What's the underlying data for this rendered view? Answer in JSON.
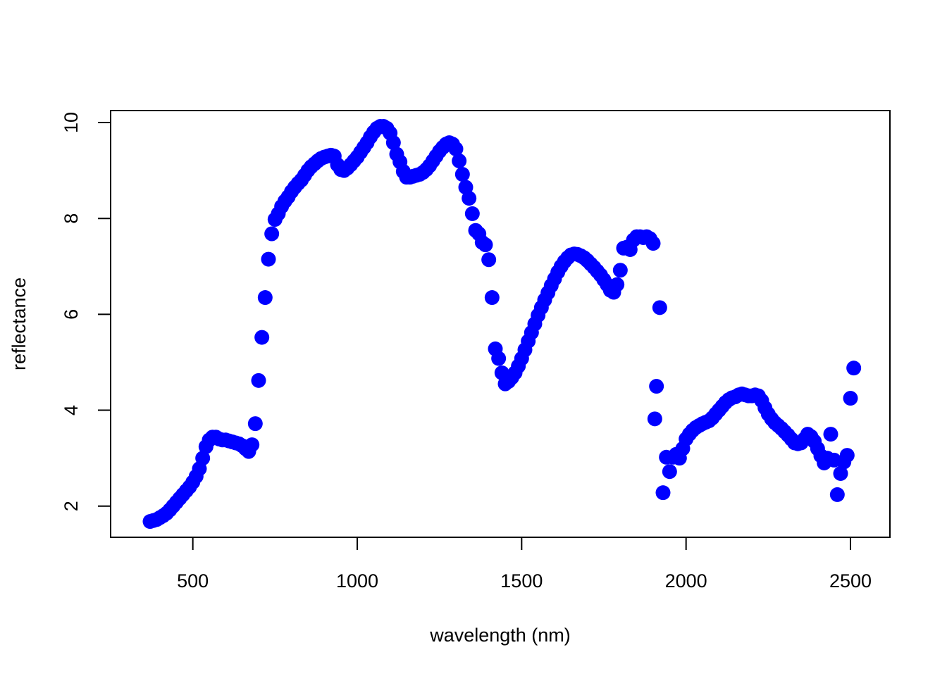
{
  "chart_data": {
    "type": "scatter",
    "title": "",
    "xlabel": "wavelength (nm)",
    "ylabel": "reflectance",
    "xlim": [
      250,
      2620
    ],
    "ylim": [
      1.35,
      10.25
    ],
    "xticks": [
      500,
      1000,
      1500,
      2000,
      2500
    ],
    "yticks": [
      2,
      4,
      6,
      8,
      10
    ],
    "grid": false,
    "legend": "none",
    "point_color": "#0000ff",
    "series": [
      {
        "points": [
          [
            370,
            1.68
          ],
          [
            380,
            1.7
          ],
          [
            390,
            1.72
          ],
          [
            400,
            1.76
          ],
          [
            410,
            1.8
          ],
          [
            420,
            1.85
          ],
          [
            430,
            1.92
          ],
          [
            440,
            2.0
          ],
          [
            450,
            2.08
          ],
          [
            460,
            2.16
          ],
          [
            470,
            2.24
          ],
          [
            480,
            2.32
          ],
          [
            490,
            2.4
          ],
          [
            500,
            2.5
          ],
          [
            510,
            2.62
          ],
          [
            520,
            2.78
          ],
          [
            530,
            3.0
          ],
          [
            540,
            3.24
          ],
          [
            550,
            3.38
          ],
          [
            560,
            3.44
          ],
          [
            570,
            3.44
          ],
          [
            580,
            3.4
          ],
          [
            590,
            3.38
          ],
          [
            600,
            3.38
          ],
          [
            610,
            3.36
          ],
          [
            620,
            3.34
          ],
          [
            630,
            3.32
          ],
          [
            640,
            3.3
          ],
          [
            650,
            3.26
          ],
          [
            660,
            3.2
          ],
          [
            670,
            3.14
          ],
          [
            680,
            3.28
          ],
          [
            690,
            3.72
          ],
          [
            700,
            4.62
          ],
          [
            710,
            5.52
          ],
          [
            720,
            6.35
          ],
          [
            730,
            7.15
          ],
          [
            740,
            7.68
          ],
          [
            750,
            7.98
          ],
          [
            760,
            8.1
          ],
          [
            770,
            8.25
          ],
          [
            780,
            8.36
          ],
          [
            790,
            8.45
          ],
          [
            800,
            8.56
          ],
          [
            810,
            8.65
          ],
          [
            820,
            8.73
          ],
          [
            830,
            8.8
          ],
          [
            840,
            8.9
          ],
          [
            850,
            9.0
          ],
          [
            860,
            9.08
          ],
          [
            870,
            9.14
          ],
          [
            880,
            9.2
          ],
          [
            890,
            9.25
          ],
          [
            900,
            9.28
          ],
          [
            910,
            9.3
          ],
          [
            920,
            9.32
          ],
          [
            930,
            9.3
          ],
          [
            940,
            9.12
          ],
          [
            950,
            9.02
          ],
          [
            960,
            9.0
          ],
          [
            970,
            9.05
          ],
          [
            980,
            9.12
          ],
          [
            990,
            9.2
          ],
          [
            1000,
            9.28
          ],
          [
            1010,
            9.38
          ],
          [
            1020,
            9.48
          ],
          [
            1030,
            9.58
          ],
          [
            1040,
            9.7
          ],
          [
            1050,
            9.8
          ],
          [
            1060,
            9.88
          ],
          [
            1070,
            9.92
          ],
          [
            1080,
            9.92
          ],
          [
            1090,
            9.88
          ],
          [
            1100,
            9.78
          ],
          [
            1110,
            9.58
          ],
          [
            1120,
            9.34
          ],
          [
            1130,
            9.18
          ],
          [
            1140,
            8.98
          ],
          [
            1150,
            8.86
          ],
          [
            1160,
            8.86
          ],
          [
            1170,
            8.88
          ],
          [
            1180,
            8.9
          ],
          [
            1190,
            8.92
          ],
          [
            1200,
            8.96
          ],
          [
            1210,
            9.02
          ],
          [
            1220,
            9.1
          ],
          [
            1230,
            9.2
          ],
          [
            1240,
            9.3
          ],
          [
            1250,
            9.4
          ],
          [
            1260,
            9.48
          ],
          [
            1270,
            9.55
          ],
          [
            1280,
            9.58
          ],
          [
            1290,
            9.55
          ],
          [
            1300,
            9.45
          ],
          [
            1310,
            9.2
          ],
          [
            1320,
            8.92
          ],
          [
            1330,
            8.65
          ],
          [
            1340,
            8.42
          ],
          [
            1350,
            8.1
          ],
          [
            1360,
            7.75
          ],
          [
            1370,
            7.68
          ],
          [
            1380,
            7.5
          ],
          [
            1390,
            7.45
          ],
          [
            1400,
            7.14
          ],
          [
            1410,
            6.35
          ],
          [
            1420,
            5.28
          ],
          [
            1430,
            5.08
          ],
          [
            1440,
            4.78
          ],
          [
            1450,
            4.55
          ],
          [
            1460,
            4.6
          ],
          [
            1470,
            4.68
          ],
          [
            1480,
            4.78
          ],
          [
            1490,
            4.92
          ],
          [
            1500,
            5.08
          ],
          [
            1510,
            5.26
          ],
          [
            1520,
            5.44
          ],
          [
            1530,
            5.62
          ],
          [
            1540,
            5.8
          ],
          [
            1550,
            5.98
          ],
          [
            1560,
            6.14
          ],
          [
            1570,
            6.3
          ],
          [
            1580,
            6.45
          ],
          [
            1590,
            6.6
          ],
          [
            1600,
            6.74
          ],
          [
            1610,
            6.88
          ],
          [
            1620,
            7.0
          ],
          [
            1630,
            7.1
          ],
          [
            1640,
            7.18
          ],
          [
            1650,
            7.24
          ],
          [
            1660,
            7.26
          ],
          [
            1670,
            7.25
          ],
          [
            1680,
            7.22
          ],
          [
            1690,
            7.18
          ],
          [
            1700,
            7.12
          ],
          [
            1710,
            7.05
          ],
          [
            1720,
            6.98
          ],
          [
            1730,
            6.9
          ],
          [
            1740,
            6.82
          ],
          [
            1750,
            6.72
          ],
          [
            1760,
            6.62
          ],
          [
            1770,
            6.5
          ],
          [
            1780,
            6.46
          ],
          [
            1790,
            6.62
          ],
          [
            1800,
            6.92
          ],
          [
            1810,
            7.38
          ],
          [
            1820,
            7.4
          ],
          [
            1830,
            7.35
          ],
          [
            1840,
            7.55
          ],
          [
            1850,
            7.62
          ],
          [
            1860,
            7.62
          ],
          [
            1870,
            7.6
          ],
          [
            1880,
            7.62
          ],
          [
            1890,
            7.58
          ],
          [
            1900,
            7.48
          ],
          [
            1905,
            3.82
          ],
          [
            1910,
            4.5
          ],
          [
            1920,
            6.14
          ],
          [
            1930,
            2.28
          ],
          [
            1940,
            3.02
          ],
          [
            1950,
            2.72
          ],
          [
            1960,
            3.02
          ],
          [
            1970,
            3.08
          ],
          [
            1980,
            3.0
          ],
          [
            1990,
            3.2
          ],
          [
            2000,
            3.4
          ],
          [
            2010,
            3.5
          ],
          [
            2020,
            3.58
          ],
          [
            2030,
            3.64
          ],
          [
            2040,
            3.68
          ],
          [
            2050,
            3.72
          ],
          [
            2060,
            3.75
          ],
          [
            2070,
            3.78
          ],
          [
            2080,
            3.84
          ],
          [
            2090,
            3.92
          ],
          [
            2100,
            4.0
          ],
          [
            2110,
            4.08
          ],
          [
            2120,
            4.16
          ],
          [
            2130,
            4.22
          ],
          [
            2140,
            4.26
          ],
          [
            2150,
            4.28
          ],
          [
            2160,
            4.32
          ],
          [
            2170,
            4.34
          ],
          [
            2180,
            4.32
          ],
          [
            2190,
            4.3
          ],
          [
            2200,
            4.3
          ],
          [
            2210,
            4.32
          ],
          [
            2220,
            4.3
          ],
          [
            2230,
            4.2
          ],
          [
            2240,
            4.05
          ],
          [
            2250,
            3.92
          ],
          [
            2260,
            3.82
          ],
          [
            2270,
            3.74
          ],
          [
            2280,
            3.68
          ],
          [
            2290,
            3.62
          ],
          [
            2300,
            3.55
          ],
          [
            2310,
            3.48
          ],
          [
            2320,
            3.4
          ],
          [
            2330,
            3.32
          ],
          [
            2340,
            3.3
          ],
          [
            2350,
            3.32
          ],
          [
            2360,
            3.4
          ],
          [
            2370,
            3.5
          ],
          [
            2380,
            3.45
          ],
          [
            2390,
            3.35
          ],
          [
            2400,
            3.2
          ],
          [
            2410,
            3.05
          ],
          [
            2420,
            2.9
          ],
          [
            2430,
            3.0
          ],
          [
            2440,
            3.5
          ],
          [
            2450,
            2.96
          ],
          [
            2460,
            2.24
          ],
          [
            2470,
            2.68
          ],
          [
            2480,
            2.92
          ],
          [
            2490,
            3.06
          ],
          [
            2500,
            4.25
          ],
          [
            2510,
            4.88
          ]
        ]
      }
    ]
  }
}
